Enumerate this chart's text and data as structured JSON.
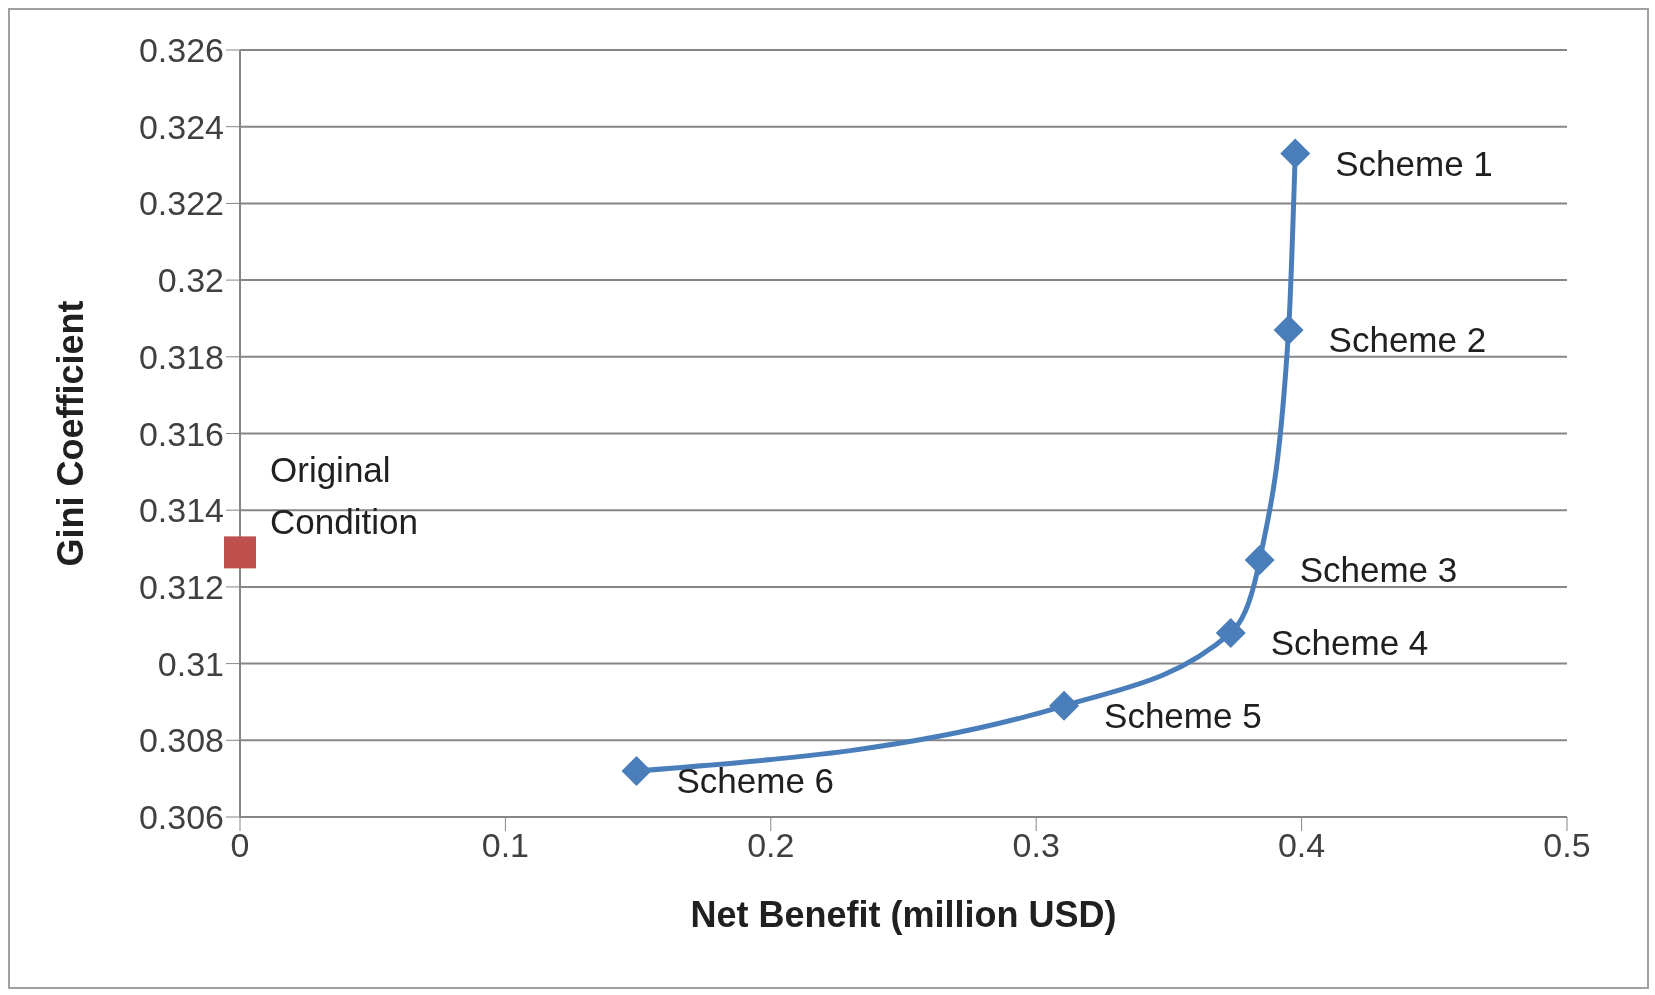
{
  "chart_data": {
    "type": "line",
    "xlabel": "Net Benefit (million USD)",
    "ylabel": "Gini Coefficient",
    "xlim": [
      0,
      0.5
    ],
    "xticks": [
      0,
      0.1,
      0.2,
      0.3,
      0.4,
      0.5
    ],
    "ylim": [
      0.306,
      0.326
    ],
    "yticks": [
      0.306,
      0.308,
      0.31,
      0.312,
      0.314,
      0.316,
      0.318,
      0.32,
      0.322,
      0.324,
      0.326
    ],
    "grid": "y",
    "series": [
      {
        "color": "#4a7ebb",
        "marker": "diamond",
        "line_style": "solid",
        "x": [
          0.3976,
          0.3951,
          0.3842,
          0.3733,
          0.3105,
          0.1494
        ],
        "values": [
          0.3233,
          0.3187,
          0.3127,
          0.3108,
          0.3089,
          0.3072
        ]
      },
      {
        "type": "scatter",
        "color": "#c0504d",
        "marker": "square",
        "x": [
          0
        ],
        "values": [
          0.3129
        ]
      }
    ],
    "annotations": [
      {
        "text": "Scheme 1",
        "x": 0.3976,
        "y": 0.3233
      },
      {
        "text": "Scheme 2",
        "x": 0.3951,
        "y": 0.3187
      },
      {
        "text": "Scheme 3",
        "x": 0.3842,
        "y": 0.3127
      },
      {
        "text": "Scheme 4",
        "x": 0.3733,
        "y": 0.3108
      },
      {
        "text": "Scheme 5",
        "x": 0.3105,
        "y": 0.3089
      },
      {
        "text": "Scheme 6",
        "x": 0.1494,
        "y": 0.3072
      },
      {
        "text": "Original\nCondition",
        "x": 0,
        "y": 0.3129
      }
    ]
  }
}
